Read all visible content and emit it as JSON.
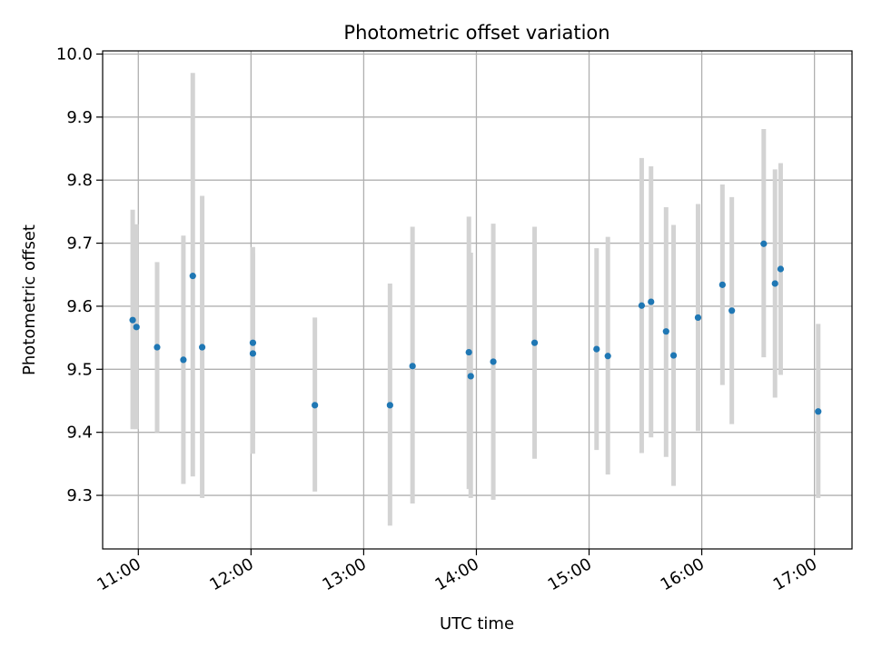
{
  "chart_data": {
    "type": "scatter",
    "title": "Photometric offset variation",
    "xlabel": "UTC time",
    "ylabel": "Photometric offset",
    "xlim": [
      "10:41",
      "17:20"
    ],
    "ylim": [
      9.215,
      10.005
    ],
    "x_ticks": [
      "11:00",
      "12:00",
      "13:00",
      "14:00",
      "15:00",
      "16:00",
      "17:00"
    ],
    "y_ticks": [
      "9.3",
      "9.4",
      "9.5",
      "9.6",
      "9.7",
      "9.8",
      "9.9",
      "10.0"
    ],
    "grid": true,
    "colors": {
      "point": "#1f77b4",
      "errorbar": "#d3d3d3",
      "grid": "#b0b0b0"
    },
    "points": [
      {
        "time": "10:57",
        "y": 9.578,
        "low": 9.405,
        "high": 9.753
      },
      {
        "time": "10:59",
        "y": 9.567,
        "low": 9.405,
        "high": 9.73
      },
      {
        "time": "11:10",
        "y": 9.535,
        "low": 9.4,
        "high": 9.67
      },
      {
        "time": "11:24",
        "y": 9.515,
        "low": 9.318,
        "high": 9.712
      },
      {
        "time": "11:29",
        "y": 9.648,
        "low": 9.33,
        "high": 9.97
      },
      {
        "time": "11:34",
        "y": 9.535,
        "low": 9.296,
        "high": 9.775
      },
      {
        "time": "12:01",
        "y": 9.542,
        "low": 9.39,
        "high": 9.694
      },
      {
        "time": "12:01",
        "y": 9.525,
        "low": 9.366,
        "high": 9.684
      },
      {
        "time": "12:34",
        "y": 9.443,
        "low": 9.306,
        "high": 9.582
      },
      {
        "time": "13:14",
        "y": 9.443,
        "low": 9.252,
        "high": 9.636
      },
      {
        "time": "13:26",
        "y": 9.505,
        "low": 9.287,
        "high": 9.726
      },
      {
        "time": "13:56",
        "y": 9.527,
        "low": 9.31,
        "high": 9.742
      },
      {
        "time": "13:57",
        "y": 9.489,
        "low": 9.296,
        "high": 9.685
      },
      {
        "time": "14:09",
        "y": 9.512,
        "low": 9.293,
        "high": 9.731
      },
      {
        "time": "14:31",
        "y": 9.542,
        "low": 9.358,
        "high": 9.726
      },
      {
        "time": "15:04",
        "y": 9.532,
        "low": 9.372,
        "high": 9.692
      },
      {
        "time": "15:10",
        "y": 9.521,
        "low": 9.333,
        "high": 9.71
      },
      {
        "time": "15:28",
        "y": 9.601,
        "low": 9.367,
        "high": 9.835
      },
      {
        "time": "15:33",
        "y": 9.607,
        "low": 9.392,
        "high": 9.822
      },
      {
        "time": "15:41",
        "y": 9.56,
        "low": 9.361,
        "high": 9.757
      },
      {
        "time": "15:45",
        "y": 9.522,
        "low": 9.315,
        "high": 9.729
      },
      {
        "time": "15:58",
        "y": 9.582,
        "low": 9.402,
        "high": 9.762
      },
      {
        "time": "16:11",
        "y": 9.634,
        "low": 9.475,
        "high": 9.793
      },
      {
        "time": "16:16",
        "y": 9.593,
        "low": 9.413,
        "high": 9.773
      },
      {
        "time": "16:33",
        "y": 9.699,
        "low": 9.519,
        "high": 9.881
      },
      {
        "time": "16:39",
        "y": 9.636,
        "low": 9.455,
        "high": 9.817
      },
      {
        "time": "16:42",
        "y": 9.659,
        "low": 9.491,
        "high": 9.827
      },
      {
        "time": "17:02",
        "y": 9.433,
        "low": 9.296,
        "high": 9.572
      }
    ]
  }
}
